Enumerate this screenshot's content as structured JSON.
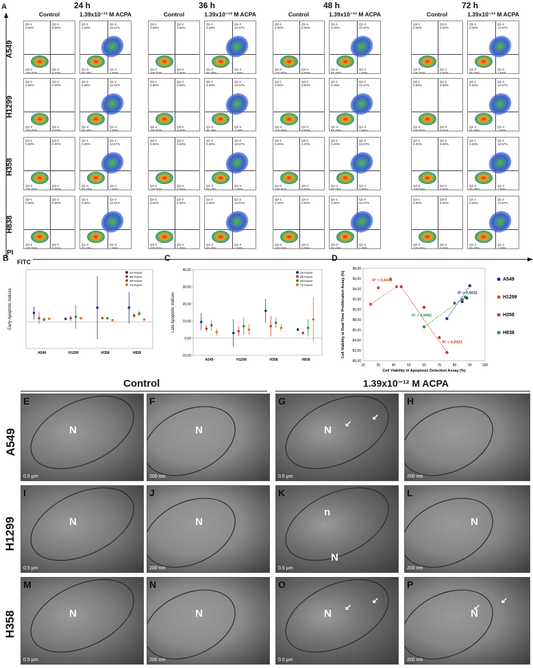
{
  "panel_letters": {
    "A": "A",
    "B": "B",
    "C": "C",
    "D": "D",
    "E": "E",
    "F": "F",
    "G": "G",
    "H": "H",
    "I": "I",
    "J": "J",
    "K": "K",
    "L": "L",
    "M": "M",
    "N": "N",
    "O": "O",
    "P": "P"
  },
  "times": [
    "24 h",
    "36 h",
    "48 h",
    "72 h"
  ],
  "conditions": {
    "control": "Control",
    "treat": "1.39x10⁻¹² M ACPA"
  },
  "cell_lines": [
    "A549",
    "H1299",
    "H358",
    "H838"
  ],
  "axis": {
    "pi": "PI",
    "fitc": "FITC"
  },
  "flow_quadrants": [
    [
      "Q2-1\n0.00%",
      "Q2-2\n0.00%",
      "Q2-3\n100.00%",
      "Q2-4\n0.00%"
    ],
    [
      "Q1-1\n0.28%",
      "Q1-2\n12.57%",
      "Q1-3\n85.48%",
      "Q1-4\n1.68%"
    ]
  ],
  "chart_b": {
    "letter": "B",
    "ylabel": "Early Apoptotic Indices",
    "legend": [
      "24 Hours",
      "36 Hours",
      "48 Hours",
      "72 Hours"
    ],
    "colors": [
      "#1f2f7a",
      "#c0392b",
      "#2e8b3a",
      "#e07020"
    ],
    "groups": [
      "A549",
      "H1299",
      "H358",
      "H838"
    ]
  },
  "chart_c": {
    "letter": "C",
    "ylabel": "Late Apoptotic Indices",
    "legend": [
      "24 Hours",
      "36 Hours",
      "48 Hours",
      "72 Hours"
    ],
    "ticks": [
      "40,00",
      "30,00",
      "20,00",
      "10,00",
      "0,00",
      "-10,00"
    ],
    "groups": [
      "A549",
      "H1299",
      "H358",
      "H838"
    ]
  },
  "chart_d": {
    "letter": "D",
    "ylabel": "Cell Viability in Real-Time Proliferation Assay (%)",
    "xlabel": "Cell Viability in Apoptosis Detection Assay (%)",
    "yticks": [
      "98,00",
      "96,00",
      "94,00",
      "92,00",
      "90,00",
      "88,00",
      "86,00",
      "84,00",
      "82,00",
      "80,00"
    ],
    "xticks": [
      "20",
      "30",
      "40",
      "50",
      "60",
      "70",
      "80",
      "90",
      "100"
    ],
    "r2": [
      "R² = 0,8425",
      "R² = 0,9232",
      "R² = 0,9992",
      "R² = 0,9323"
    ],
    "legend": [
      "A549",
      "H1299",
      "H358",
      "H838"
    ]
  },
  "chart_data": [
    {
      "type": "scatter",
      "title": "",
      "xlabel": "Cell Viability in Apoptosis Detection Assay (%)",
      "ylabel": "Cell Viability in Real-Time Proliferation Assay (%)",
      "xlim": [
        20,
        100
      ],
      "ylim": [
        80,
        98
      ],
      "series": [
        {
          "name": "A549",
          "color": "#1f2f7a",
          "x": [
            75,
            85,
            88,
            90
          ],
          "y": [
            88.2,
            91.5,
            92.2,
            94.6
          ]
        },
        {
          "name": "H1299",
          "color": "#d0502a",
          "x": [
            25,
            30,
            38,
            42
          ],
          "y": [
            91.0,
            94.2,
            95.9,
            94.4
          ]
        },
        {
          "name": "H358",
          "color": "#c0392b",
          "x": [
            45,
            60,
            70,
            75
          ],
          "y": [
            94.4,
            90.4,
            84.5,
            81.6
          ]
        },
        {
          "name": "H838",
          "color": "#2e8b3a",
          "x": [
            60,
            80,
            85,
            87
          ],
          "y": [
            86.6,
            91.2,
            91.9,
            92.4
          ]
        }
      ]
    }
  ],
  "tem": {
    "control": "Control",
    "treat": "1.39x10⁻¹² M ACPA",
    "rows": [
      "A549",
      "H1299",
      "H358"
    ],
    "panels": [
      {
        "letter": "E",
        "n": "N",
        "scale": "0.5 µm"
      },
      {
        "letter": "F",
        "n": "N",
        "scale": "200 nm"
      },
      {
        "letter": "G",
        "n": "N",
        "scale": "0.5 µm"
      },
      {
        "letter": "H",
        "n": "",
        "scale": "200 nm"
      },
      {
        "letter": "I",
        "n": "N",
        "scale": "0.5 µm"
      },
      {
        "letter": "J",
        "n": "N",
        "scale": "200 nm"
      },
      {
        "letter": "K",
        "n": "n",
        "n2": "N",
        "scale": "0.5 µm"
      },
      {
        "letter": "L",
        "n": "N",
        "scale": "200 nm"
      },
      {
        "letter": "M",
        "n": "N",
        "scale": "0.5 µm"
      },
      {
        "letter": "N",
        "n": "N",
        "scale": "200 nm"
      },
      {
        "letter": "O",
        "n": "N",
        "scale": "0.5 µm"
      },
      {
        "letter": "P",
        "n": "N",
        "scale": "200 nm"
      }
    ]
  }
}
